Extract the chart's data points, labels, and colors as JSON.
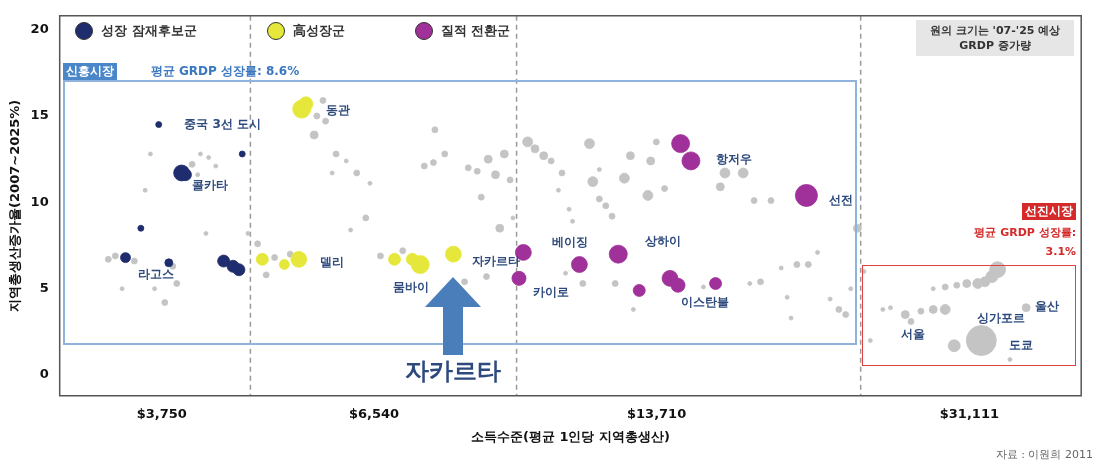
{
  "chart_data": {
    "type": "bubble",
    "xlabel": "소득수준(평균 1인당 지역총생산)",
    "ylabel": "지역총생산증가율(2007~2025%)",
    "log": "x",
    "xlim": [
      2870,
      41700
    ],
    "xticks": [
      {
        "value": 3750,
        "label": "$3,750"
      },
      {
        "value": 6540,
        "label": "$6,540"
      },
      {
        "value": 13710,
        "label": "$13,710"
      },
      {
        "value": 31111,
        "label": "$31,111"
      }
    ],
    "ylim": [
      -1.2,
      20.8
    ],
    "yticks": [
      0,
      5,
      10,
      15,
      20
    ],
    "legend": "top left",
    "ref_lines": [
      {
        "axis": "x",
        "value": 4730,
        "line_style": "dashed",
        "color": "#9a9a9a"
      },
      {
        "axis": "x",
        "value": 9500,
        "line_style": "dashed",
        "color": "#9a9a9a"
      },
      {
        "axis": "x",
        "value": 23400,
        "line_style": "dashed",
        "color": "#9a9a9a"
      }
    ],
    "series": [
      {
        "name": "성장 잠재후보군",
        "color": "#1f2d6e",
        "x": [
          3720,
          4630,
          3950,
          3990,
          3550,
          3410,
          3820,
          4410,
          4520,
          4590
        ],
        "values": [
          14.5,
          12.8,
          11.7,
          11.6,
          8.5,
          6.8,
          6.5,
          6.6,
          6.3,
          6.1
        ],
        "sizes": [
          0.04,
          0.04,
          0.28,
          0.16,
          0.04,
          0.11,
          0.071,
          0.16,
          0.16,
          0.16
        ]
      },
      {
        "name": "高성장군",
        "color": "#e5e83a",
        "x": [
          5410,
          5470,
          4880,
          5170,
          5370,
          6900,
          7230,
          7380,
          8050
        ],
        "values": [
          15.4,
          15.7,
          6.7,
          6.4,
          6.7,
          6.7,
          6.7,
          6.4,
          7.0
        ],
        "sizes": [
          0.36,
          0.22,
          0.16,
          0.11,
          0.28,
          0.16,
          0.16,
          0.36,
          0.28
        ]
      },
      {
        "name": "질적 전환군",
        "color": "#a0309a",
        "x": [
          9670,
          9560,
          11200,
          12400,
          13100,
          14200,
          14500,
          16000,
          14600,
          15000,
          20300
        ],
        "values": [
          7.1,
          5.6,
          6.4,
          7.0,
          4.9,
          5.6,
          5.2,
          5.3,
          13.4,
          12.4,
          10.4
        ],
        "sizes": [
          0.28,
          0.22,
          0.28,
          0.36,
          0.16,
          0.28,
          0.22,
          0.16,
          0.36,
          0.36,
          0.54
        ]
      },
      {
        "color": "#c4c4c4",
        "x": [
          3640,
          4150,
          4240,
          4320,
          4060,
          4120,
          3590,
          4210,
          4700,
          3260,
          3320,
          3490,
          3380,
          3680,
          3900,
          3780,
          3860,
          5720,
          5630,
          5760,
          5590,
          5920,
          6080,
          5860,
          6250,
          6470,
          7670,
          7460,
          7640,
          7870,
          8370,
          8570,
          8820,
          9200,
          8990,
          9340,
          8660,
          6400,
          6150,
          9410,
          9090,
          6650,
          7050,
          8780,
          8290,
          6980,
          4820,
          4930,
          5040,
          5250,
          9780,
          9970,
          10200,
          10400,
          10700,
          10600,
          10900,
          11000,
          11500,
          11600,
          11800,
          11800,
          12000,
          12200,
          12600,
          12800,
          13400,
          14000,
          13500,
          13700,
          16400,
          17200,
          16200,
          17700,
          18500,
          23200,
          11300,
          10800,
          12300,
          12900,
          15500,
          17500,
          18000,
          19000,
          19800,
          20400,
          20900,
          19300,
          19500,
          22800,
          21600,
          22100,
          22500,
          33500,
          33000,
          32400,
          31800,
          30900,
          30100,
          29200,
          28300,
          29200,
          28300,
          27400,
          24800,
          25300,
          26300,
          26700,
          36100,
          32100,
          29900,
          34600,
          24000,
          23600
        ],
        "values": [
          12.8,
          12.8,
          12.6,
          12.1,
          12.2,
          11.6,
          10.7,
          8.2,
          8.2,
          6.7,
          6.9,
          6.6,
          5.0,
          5.0,
          5.3,
          4.2,
          6.3,
          15.9,
          15.0,
          14.7,
          13.9,
          12.8,
          12.4,
          11.7,
          11.7,
          11.1,
          14.2,
          12.1,
          12.3,
          12.8,
          12.0,
          11.8,
          12.5,
          12.8,
          11.6,
          11.3,
          10.3,
          9.1,
          8.4,
          9.1,
          8.5,
          6.9,
          7.2,
          5.7,
          5.4,
          5.0,
          7.6,
          5.8,
          6.8,
          7.0,
          13.5,
          13.1,
          12.7,
          12.4,
          11.7,
          10.7,
          9.6,
          8.9,
          13.4,
          11.2,
          11.9,
          10.2,
          9.8,
          9.2,
          11.4,
          12.7,
          10.4,
          10.8,
          12.4,
          13.5,
          11.7,
          11.7,
          10.9,
          10.1,
          10.1,
          8.5,
          5.3,
          5.9,
          5.3,
          3.8,
          5.1,
          5.3,
          5.4,
          6.2,
          6.4,
          6.4,
          7.1,
          4.5,
          3.3,
          5.0,
          4.4,
          3.8,
          3.5,
          6.1,
          5.7,
          5.4,
          5.3,
          5.3,
          5.2,
          5.1,
          5.0,
          3.8,
          3.8,
          3.7,
          3.8,
          3.9,
          3.5,
          3.1,
          3.9,
          2.0,
          1.7,
          0.9,
          2.0,
          6.0
        ],
        "sizes": [
          0.018,
          0.018,
          0.018,
          0.018,
          0.04,
          0.018,
          0.018,
          0.018,
          0.018,
          0.04,
          0.04,
          0.04,
          0.018,
          0.018,
          0.04,
          0.04,
          0.04,
          0.04,
          0.04,
          0.04,
          0.071,
          0.04,
          0.018,
          0.018,
          0.04,
          0.018,
          0.04,
          0.04,
          0.04,
          0.04,
          0.04,
          0.04,
          0.071,
          0.071,
          0.071,
          0.04,
          0.04,
          0.04,
          0.018,
          0.018,
          0.071,
          0.04,
          0.04,
          0.04,
          0.04,
          0.018,
          0.04,
          0.04,
          0.04,
          0.04,
          0.11,
          0.071,
          0.071,
          0.04,
          0.04,
          0.018,
          0.018,
          0.018,
          0.11,
          0.11,
          0.018,
          0.04,
          0.04,
          0.04,
          0.11,
          0.071,
          0.11,
          0.04,
          0.071,
          0.04,
          0.11,
          0.11,
          0.071,
          0.04,
          0.04,
          0.071,
          0.04,
          0.018,
          0.04,
          0.018,
          0.018,
          0.018,
          0.04,
          0.018,
          0.04,
          0.04,
          0.018,
          0.018,
          0.018,
          0.018,
          0.018,
          0.04,
          0.04,
          0.28,
          0.16,
          0.11,
          0.11,
          0.071,
          0.04,
          0.04,
          0.018,
          0.11,
          0.071,
          0.04,
          0.018,
          0.018,
          0.071,
          0.04,
          0.071,
          1,
          0.16,
          0.018,
          0.018,
          0.018
        ]
      }
    ],
    "annotations": [
      "원의 크기는 '07-'25 예상 GRDP 증가량",
      "신흥시장",
      "평균 GRDP 성장률: 8.6%",
      "선진시장",
      "평균 GRDP 성장률: 3.1%",
      "자료 : 이원희 2011",
      "자카르타",
      {
        "text": "중국 3선 도시",
        "x": 3720,
        "y": 14.5
      },
      {
        "text": "콜카타",
        "x": 3950,
        "y": 11.7
      },
      {
        "text": "라고스",
        "x": 3410,
        "y": 6.8
      },
      {
        "text": "동관",
        "x": 5410,
        "y": 15.4
      },
      {
        "text": "델리",
        "x": 5370,
        "y": 6.7
      },
      {
        "text": "뭄바이",
        "x": 7380,
        "y": 6.4
      },
      {
        "text": "자카르타",
        "x": 8050,
        "y": 7.0
      },
      {
        "text": "베이징",
        "x": 9670,
        "y": 7.1
      },
      {
        "text": "카이로",
        "x": 9560,
        "y": 5.6
      },
      {
        "text": "상하이",
        "x": 12400,
        "y": 7.0
      },
      {
        "text": "이스탄불",
        "x": 14500,
        "y": 5.2
      },
      {
        "text": "항저우",
        "x": 15000,
        "y": 12.4
      },
      {
        "text": "선전",
        "x": 20300,
        "y": 10.4
      },
      {
        "text": "서울",
        "x": 26300,
        "y": 3.5
      },
      {
        "text": "싱가포르",
        "x": 31800,
        "y": 5.3
      },
      {
        "text": "울산",
        "x": 36100,
        "y": 3.9
      },
      {
        "text": "도쿄",
        "x": 32100,
        "y": 2.0
      }
    ]
  }
}
